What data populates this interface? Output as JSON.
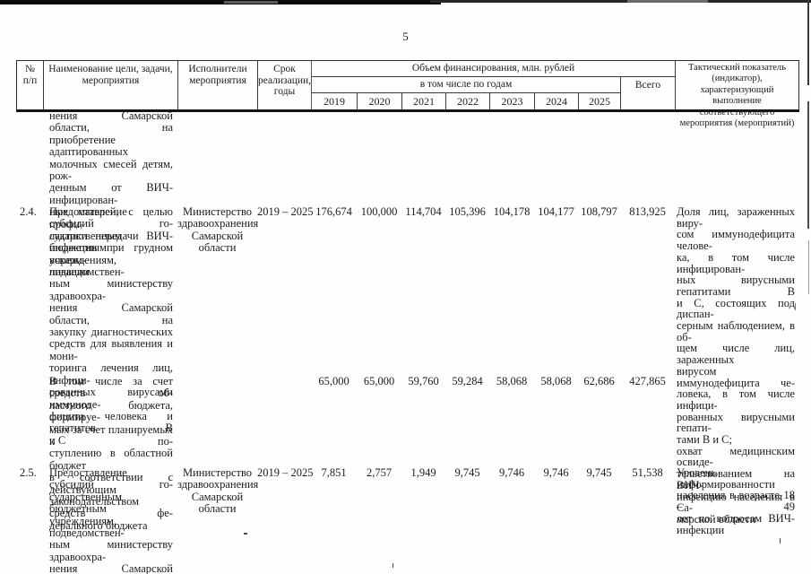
{
  "page_number": "5",
  "table": {
    "header": {
      "num": "№\nп/п",
      "name": "Наименование цели, задачи,\nмероприятия",
      "executor": "Исполнители\nмероприятия",
      "term": "Срок\nреализации,\nгоды",
      "financing": "Объем финансирования, млн. рублей",
      "by_years": "в том числе по годам",
      "years": [
        "2019",
        "2020",
        "2021",
        "2022",
        "2023",
        "2024",
        "2025"
      ],
      "total": "Всего",
      "indicator": "Тактический показатель\n(индикатор), характеризующий\nвыполнение соответствующего\nмероприятия (мероприятий)"
    },
    "rows": [
      {
        "num": "",
        "name_lines": [
          "нения Самарской области, на",
          "приобретение адаптированных",
          "молочных смесей детям, рож-",
          "денным от ВИЧ-инфицирован-",
          "ных матерей, с целью профи-",
          "лактики передачи ВИЧ-",
          "инфекции при грудном вскарм-",
          "ливании"
        ],
        "executor": "",
        "term": ""
      },
      {
        "num": "2.4.",
        "name_lines": [
          "Предоставление субсидий го-",
          "сударственным бюджетным",
          "учреждениям, подведомствен-",
          "ным министерству здравоохра-",
          "нения Самарской области, на",
          "закупку диагностических",
          "средств для выявления и мони-",
          "торинга лечения лиц, инфици-",
          "рованных вирусами иммуноде-",
          "фицита человека и гепатитов В",
          "и С"
        ],
        "executor": "Министерство\nздравоохранения\nСамарской\nобласти",
        "term": "2019 – 2025",
        "values": [
          "176,674",
          "100,000",
          "114,704",
          "105,396",
          "104,178",
          "104,177",
          "108,797"
        ],
        "total": "813,925",
        "indicator_lines": [
          [
            "Доля лиц, зараженных виру-",
            "сом иммунодефицита челове-",
            "ка, в том числе инфицирован-",
            "ных вирусными гепатитами В",
            "и С, состоящих под диспан-",
            "серным наблюдением, в об-",
            "щем числе лиц, зараженных",
            "вирусом иммунодефицита че-",
            "ловека, в том числе инфици-",
            "рованных вирусными гепати-",
            "тами В и С;"
          ],
          [
            "охват медицинским освиде-",
            "тельствованием на ВИЧ-",
            "инфекцию населения в Са-",
            "марской области"
          ]
        ]
      },
      {
        "num": "",
        "name_lines": [
          "В том числе за счет средств об-",
          "ластного бюджета, формируе-",
          "мых за счет планируемых к по-",
          "ступлению в областной бюджет",
          "в соответствии с действующим",
          "законодательством средств фе-",
          "дерального бюджета"
        ],
        "executor": "",
        "term": "",
        "values": [
          "65,000",
          "65,000",
          "59,760",
          "59,284",
          "58,068",
          "58,068",
          "62,686"
        ],
        "total": "427,865"
      },
      {
        "num": "2.5.",
        "name_lines": [
          "Предоставление субсидий го-",
          "сударственным бюджетным",
          "учреждениям, подведомствен-",
          "ным министерству здравоохра-",
          "нения Самарской области, на"
        ],
        "executor": "Министерство\nздравоохранения\nСамарской\nобласти",
        "term": "2019 – 2025",
        "values": [
          "7,851",
          "2,757",
          "1,949",
          "9,745",
          "9,746",
          "9,746",
          "9,745"
        ],
        "total": "51,538",
        "indicator_lines": [
          [
            "Уровень информированности",
            "населения в возрасте 18 – 49",
            "лет по вопросам ВИЧ-",
            "инфекции"
          ]
        ]
      }
    ]
  }
}
